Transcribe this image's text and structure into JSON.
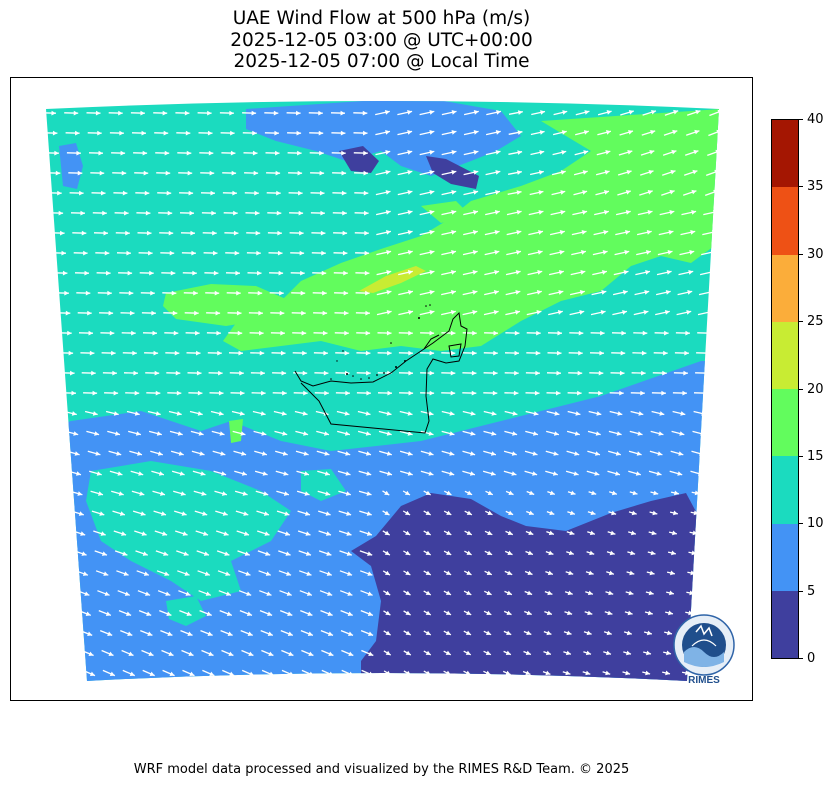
{
  "title": {
    "line1": "UAE Wind Flow at 500 hPa (m/s)",
    "line2": "2025-12-05 03:00 @ UTC+00:00",
    "line3": "2025-12-05 07:00 @ Local Time"
  },
  "colorbar": {
    "ticks": [
      "0",
      "5",
      "10",
      "15",
      "20",
      "25",
      "30",
      "35",
      "40"
    ],
    "colors": [
      "#3f3f9e",
      "#4393f5",
      "#1bdbbf",
      "#62fc5d",
      "#c8ec33",
      "#fbad3a",
      "#ee5115",
      "#a41602"
    ]
  },
  "logo": {
    "text": "RIMES"
  },
  "credit": "WRF model data processed and visualized by the RIMES R&D Team. © 2025"
}
